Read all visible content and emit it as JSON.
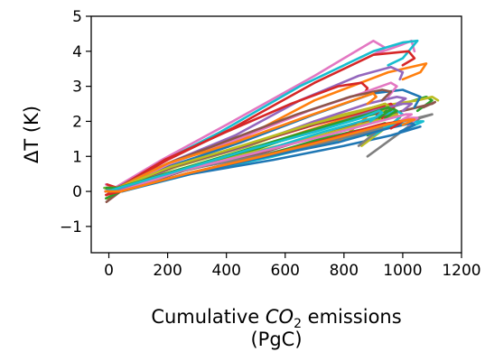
{
  "chart_data": {
    "type": "line",
    "title": "",
    "xlabel": {
      "pre": "Cumulative ",
      "chem": "CO",
      "sub": "2",
      "post": " emissions",
      "line2": "(PgC)"
    },
    "ylabel": "ΔT (K)",
    "xlim": [
      -60,
      1200
    ],
    "ylim": [
      -1.75,
      5
    ],
    "xticks": [
      0,
      200,
      400,
      600,
      800,
      1000,
      1200
    ],
    "xtick_labels": [
      "0",
      "200",
      "400",
      "600",
      "800",
      "1000",
      "1200"
    ],
    "yticks": [
      -1,
      0,
      1,
      2,
      3,
      4,
      5
    ],
    "ytick_labels": [
      "−1",
      "0",
      "1",
      "2",
      "3",
      "4",
      "5"
    ],
    "grid": false,
    "legend": "none",
    "series": [
      {
        "color": "#e377c2",
        "x": [
          -10,
          20,
          180,
          400,
          700,
          900,
          940,
          900,
          1000,
          1030,
          1040
        ],
        "y": [
          0.2,
          0.1,
          0.9,
          1.9,
          3.3,
          4.3,
          4.1,
          3.9,
          4.2,
          4.3,
          4.0
        ]
      },
      {
        "color": "#17becf",
        "x": [
          -12,
          20,
          170,
          380,
          650,
          900,
          1000,
          1050,
          1000,
          950
        ],
        "y": [
          0.1,
          0.0,
          0.8,
          1.7,
          3.0,
          4.0,
          4.25,
          4.3,
          3.8,
          3.6
        ]
      },
      {
        "color": "#d62728",
        "x": [
          -8,
          30,
          200,
          420,
          700,
          900,
          1020,
          1040,
          1000
        ],
        "y": [
          -0.1,
          0.1,
          0.9,
          1.8,
          3.1,
          3.9,
          4.0,
          3.8,
          3.6
        ]
      },
      {
        "color": "#ff7f0e",
        "x": [
          -5,
          40,
          220,
          450,
          700,
          950,
          1080,
          1060,
          1000
        ],
        "y": [
          -0.2,
          0.0,
          0.7,
          1.5,
          2.6,
          3.4,
          3.65,
          3.4,
          3.2
        ]
      },
      {
        "color": "#9467bd",
        "x": [
          -10,
          30,
          200,
          430,
          650,
          850,
          960,
          1000,
          990
        ],
        "y": [
          0.0,
          0.1,
          0.8,
          1.6,
          2.6,
          3.3,
          3.55,
          3.4,
          3.2
        ]
      },
      {
        "color": "#2ca02c",
        "x": [
          -15,
          25,
          240,
          500,
          750,
          1000,
          1080,
          1100,
          1050
        ],
        "y": [
          0.1,
          0.0,
          0.6,
          1.2,
          1.9,
          2.5,
          2.7,
          2.6,
          2.3
        ]
      },
      {
        "color": "#8c564b",
        "x": [
          -8,
          40,
          260,
          520,
          800,
          1000,
          1100,
          1110,
          1070
        ],
        "y": [
          -0.3,
          0.0,
          0.6,
          1.1,
          1.8,
          2.3,
          2.5,
          2.55,
          2.4
        ]
      },
      {
        "color": "#bcbd22",
        "x": [
          -5,
          35,
          230,
          480,
          700,
          900,
          1050,
          1100,
          1120
        ],
        "y": [
          0.0,
          0.1,
          0.7,
          1.3,
          2.0,
          2.4,
          2.6,
          2.7,
          2.6
        ]
      },
      {
        "color": "#1f77b4",
        "x": [
          -12,
          20,
          200,
          450,
          700,
          900,
          1000,
          1060,
          1040
        ],
        "y": [
          0.1,
          0.0,
          0.7,
          1.4,
          2.2,
          2.8,
          2.9,
          2.7,
          2.4
        ]
      },
      {
        "color": "#7f7f7f",
        "x": [
          -10,
          40,
          250,
          500,
          750,
          950,
          1050,
          1100,
          1060,
          880
        ],
        "y": [
          0.0,
          0.1,
          0.6,
          1.0,
          1.5,
          1.9,
          2.1,
          2.2,
          2.1,
          1.0
        ]
      },
      {
        "color": "#d62728",
        "x": [
          -6,
          30,
          190,
          400,
          620,
          780,
          860,
          880,
          870
        ],
        "y": [
          0.2,
          0.1,
          0.9,
          1.7,
          2.5,
          3.0,
          3.1,
          2.95,
          2.8
        ]
      },
      {
        "color": "#e377c2",
        "x": [
          -10,
          30,
          210,
          440,
          680,
          860,
          960,
          980,
          950
        ],
        "y": [
          0.0,
          0.1,
          0.8,
          1.5,
          2.3,
          2.8,
          3.1,
          3.0,
          2.7
        ]
      },
      {
        "color": "#17becf",
        "x": [
          -8,
          45,
          280,
          560,
          800,
          980,
          1060,
          1070,
          990
        ],
        "y": [
          0.1,
          0.0,
          0.5,
          1.0,
          1.5,
          1.9,
          2.0,
          2.0,
          1.7
        ]
      },
      {
        "color": "#ff7f0e",
        "x": [
          -12,
          35,
          240,
          480,
          700,
          850,
          920,
          900,
          860,
          780
        ],
        "y": [
          0.0,
          0.1,
          0.6,
          1.2,
          1.8,
          2.2,
          2.4,
          2.3,
          2.0,
          1.4
        ]
      },
      {
        "color": "#2ca02c",
        "x": [
          -10,
          40,
          260,
          520,
          720,
          880,
          940,
          920,
          880
        ],
        "y": [
          -0.2,
          0.0,
          0.5,
          1.0,
          1.5,
          1.8,
          1.95,
          1.8,
          1.6
        ]
      },
      {
        "color": "#9467bd",
        "x": [
          -5,
          30,
          220,
          470,
          700,
          880,
          980,
          1010,
          980
        ],
        "y": [
          0.1,
          0.0,
          0.7,
          1.3,
          2.0,
          2.5,
          2.7,
          2.65,
          2.5
        ]
      },
      {
        "color": "#8c564b",
        "x": [
          -9,
          25,
          200,
          420,
          640,
          820,
          930,
          960,
          930
        ],
        "y": [
          0.0,
          0.1,
          0.8,
          1.5,
          2.2,
          2.7,
          2.9,
          2.85,
          2.6
        ]
      },
      {
        "color": "#1f77b4",
        "x": [
          -10,
          40,
          280,
          560,
          800,
          960,
          1040,
          1060,
          1000
        ],
        "y": [
          0.0,
          0.0,
          0.5,
          0.9,
          1.3,
          1.6,
          1.8,
          1.85,
          1.7
        ]
      },
      {
        "color": "#bcbd22",
        "x": [
          -7,
          30,
          230,
          480,
          720,
          900,
          980,
          990,
          940,
          860
        ],
        "y": [
          0.1,
          0.1,
          0.6,
          1.1,
          1.6,
          2.0,
          2.2,
          2.1,
          1.8,
          1.3
        ]
      },
      {
        "color": "#e377c2",
        "x": [
          -12,
          35,
          260,
          520,
          760,
          940,
          1030,
          1050,
          1020
        ],
        "y": [
          0.0,
          0.0,
          0.5,
          1.0,
          1.5,
          1.9,
          2.1,
          2.1,
          1.9
        ]
      },
      {
        "color": "#d62728",
        "x": [
          -8,
          30,
          210,
          460,
          700,
          880,
          960,
          970,
          930
        ],
        "y": [
          0.0,
          0.1,
          0.7,
          1.3,
          1.9,
          2.3,
          2.5,
          2.4,
          2.1
        ]
      },
      {
        "color": "#17becf",
        "x": [
          -10,
          40,
          250,
          500,
          730,
          900,
          980,
          1000,
          960,
          900
        ],
        "y": [
          0.1,
          0.0,
          0.6,
          1.1,
          1.7,
          2.1,
          2.3,
          2.2,
          1.9,
          1.6
        ]
      },
      {
        "color": "#2ca02c",
        "x": [
          -6,
          35,
          240,
          490,
          730,
          900,
          970,
          980,
          940
        ],
        "y": [
          0.0,
          0.1,
          0.6,
          1.2,
          1.8,
          2.2,
          2.35,
          2.3,
          2.1
        ]
      },
      {
        "color": "#ff7f0e",
        "x": [
          -10,
          30,
          200,
          430,
          660,
          830,
          900,
          910,
          880
        ],
        "y": [
          0.1,
          0.1,
          0.8,
          1.4,
          2.1,
          2.6,
          2.8,
          2.7,
          2.5
        ]
      },
      {
        "color": "#7f7f7f",
        "x": [
          -9,
          40,
          260,
          520,
          740,
          880,
          930,
          910,
          850
        ],
        "y": [
          0.0,
          0.0,
          0.5,
          1.0,
          1.4,
          1.7,
          1.8,
          1.7,
          1.3
        ]
      },
      {
        "color": "#9467bd",
        "x": [
          -11,
          35,
          230,
          480,
          720,
          900,
          1000,
          1030,
          1000
        ],
        "y": [
          0.0,
          0.1,
          0.6,
          1.2,
          1.8,
          2.3,
          2.5,
          2.5,
          2.3
        ]
      },
      {
        "color": "#8c564b",
        "x": [
          -7,
          30,
          220,
          460,
          690,
          860,
          940,
          950,
          910
        ],
        "y": [
          0.1,
          0.1,
          0.7,
          1.3,
          1.9,
          2.3,
          2.5,
          2.4,
          2.2
        ]
      },
      {
        "color": "#1f77b4",
        "x": [
          -10,
          45,
          270,
          540,
          780,
          950,
          1030,
          1040,
          990
        ],
        "y": [
          0.0,
          0.0,
          0.5,
          1.0,
          1.4,
          1.8,
          1.95,
          1.9,
          1.7
        ]
      },
      {
        "color": "#bcbd22",
        "x": [
          -12,
          30,
          210,
          450,
          680,
          860,
          940,
          950,
          920
        ],
        "y": [
          0.1,
          0.1,
          0.7,
          1.3,
          1.9,
          2.3,
          2.5,
          2.45,
          2.2
        ]
      },
      {
        "color": "#e377c2",
        "x": [
          -8,
          35,
          250,
          500,
          740,
          920,
          1010,
          1030,
          990
        ],
        "y": [
          0.0,
          0.0,
          0.6,
          1.1,
          1.6,
          2.0,
          2.2,
          2.2,
          2.0
        ]
      },
      {
        "color": "#d62728",
        "x": [
          -10,
          40,
          260,
          520,
          750,
          920,
          990,
          1000,
          960
        ],
        "y": [
          -0.1,
          0.0,
          0.5,
          1.0,
          1.5,
          1.9,
          2.0,
          2.0,
          1.8
        ]
      },
      {
        "color": "#2ca02c",
        "x": [
          -9,
          30,
          230,
          470,
          710,
          880,
          950,
          960,
          920
        ],
        "y": [
          0.1,
          0.1,
          0.6,
          1.2,
          1.8,
          2.2,
          2.4,
          2.35,
          2.1
        ]
      },
      {
        "color": "#17becf",
        "x": [
          -6,
          35,
          240,
          480,
          700,
          860,
          920,
          930,
          890
        ],
        "y": [
          0.0,
          0.1,
          0.6,
          1.2,
          1.7,
          2.1,
          2.3,
          2.25,
          2.0
        ]
      },
      {
        "color": "#ff7f0e",
        "x": [
          -11,
          40,
          260,
          520,
          760,
          940,
          1020,
          1040,
          1000
        ],
        "y": [
          0.0,
          0.0,
          0.5,
          1.0,
          1.5,
          1.9,
          2.05,
          2.05,
          1.9
        ]
      }
    ]
  }
}
